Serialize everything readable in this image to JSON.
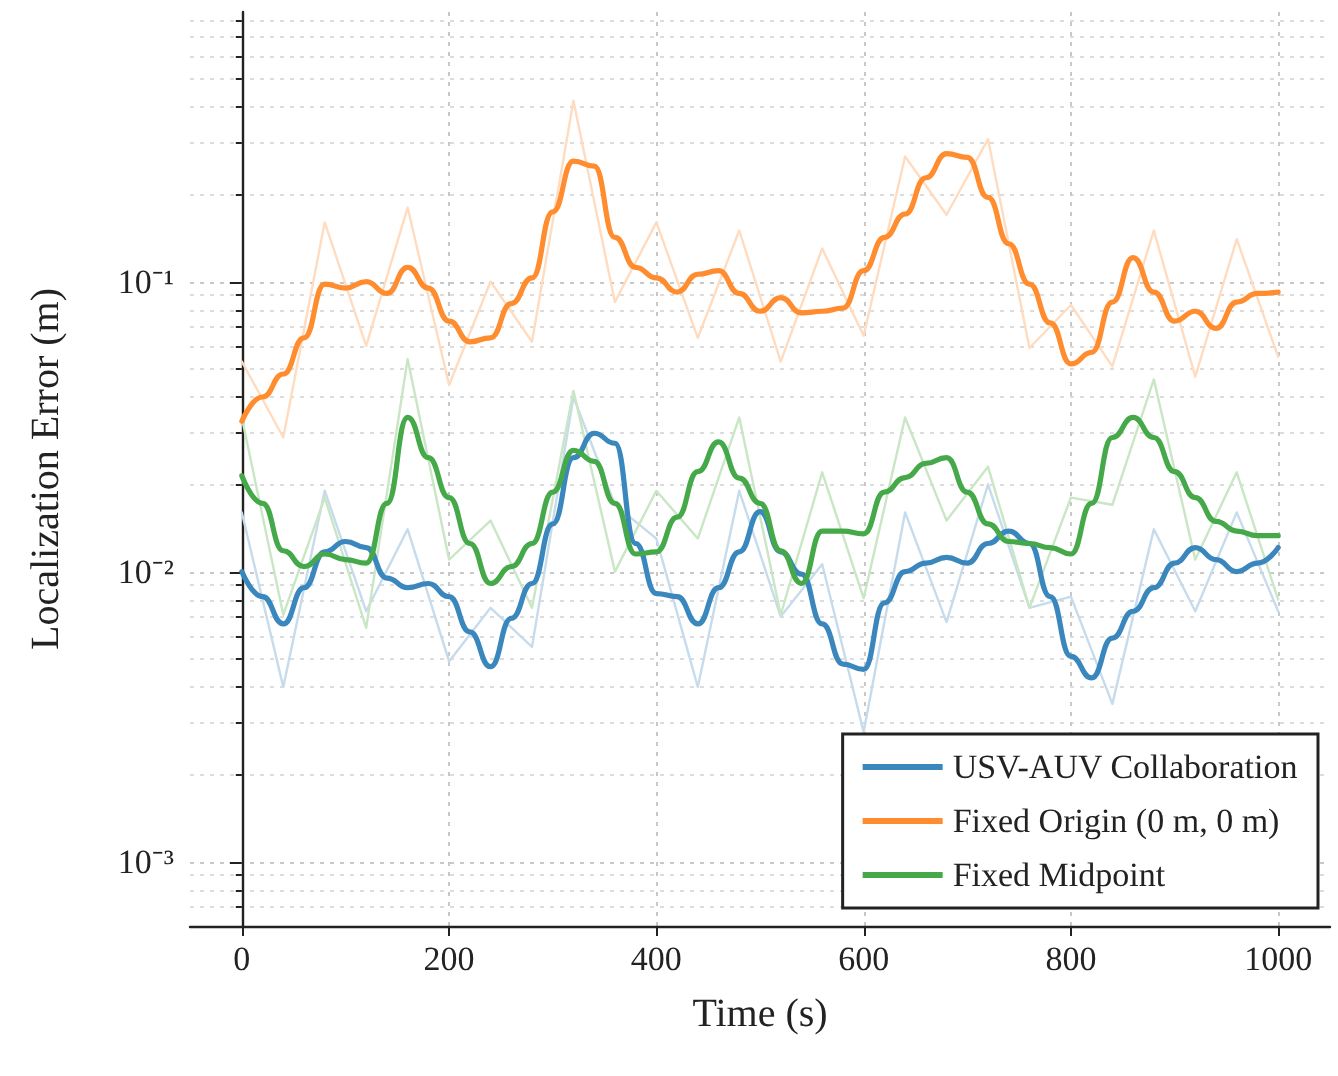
{
  "chart_data": {
    "type": "line",
    "xlabel": "Time (s)",
    "ylabel": "Localization Error (m)",
    "log": "y",
    "grid": true,
    "legend": "bottom right",
    "line_style": "solid",
    "marker": "none",
    "xlim": [
      -50,
      1050
    ],
    "xticks": [
      0,
      200,
      400,
      600,
      800,
      1000
    ],
    "ylim": [
      0.0006,
      0.85
    ],
    "yticks": [
      {
        "value": 0.001,
        "label": "10⁻³"
      },
      {
        "value": 0.01,
        "label": "10⁻²"
      },
      {
        "value": 0.1,
        "label": "10⁻¹"
      }
    ],
    "series": [
      {
        "color": "#c6dbec",
        "x": [
          0,
          40,
          80,
          120,
          160,
          200,
          240,
          280,
          320,
          360,
          400,
          440,
          480,
          520,
          560,
          600,
          640,
          680,
          720,
          760,
          800,
          840,
          880,
          920,
          960,
          1000
        ],
        "values": [
          0.016,
          0.004,
          0.019,
          0.0073,
          0.014,
          0.0049,
          0.0075,
          0.0055,
          0.04,
          0.017,
          0.013,
          0.004,
          0.019,
          0.007,
          0.0106,
          0.0028,
          0.016,
          0.0067,
          0.02,
          0.0075,
          0.0082,
          0.0035,
          0.014,
          0.0073,
          0.016,
          0.0073
        ]
      },
      {
        "color": "#ffdcc0",
        "x": [
          0,
          40,
          80,
          120,
          160,
          200,
          240,
          280,
          320,
          360,
          400,
          440,
          480,
          520,
          560,
          600,
          640,
          680,
          720,
          760,
          800,
          840,
          880,
          920,
          960,
          1000
        ],
        "values": [
          0.053,
          0.029,
          0.16,
          0.06,
          0.18,
          0.044,
          0.1,
          0.062,
          0.42,
          0.085,
          0.16,
          0.064,
          0.15,
          0.053,
          0.13,
          0.065,
          0.27,
          0.17,
          0.31,
          0.059,
          0.083,
          0.051,
          0.15,
          0.047,
          0.14,
          0.055
        ]
      },
      {
        "color": "#c9e6c5",
        "x": [
          0,
          40,
          80,
          120,
          160,
          200,
          240,
          280,
          320,
          360,
          400,
          440,
          480,
          520,
          560,
          600,
          640,
          680,
          720,
          760,
          800,
          840,
          880,
          920,
          960,
          1000
        ],
        "values": [
          0.034,
          0.0071,
          0.018,
          0.0064,
          0.054,
          0.011,
          0.015,
          0.0075,
          0.042,
          0.01,
          0.019,
          0.013,
          0.034,
          0.0071,
          0.022,
          0.0081,
          0.034,
          0.015,
          0.023,
          0.0075,
          0.018,
          0.017,
          0.046,
          0.011,
          0.022,
          0.008
        ]
      },
      {
        "name": "USV-AUV Collaboration",
        "color": "#3a87bd",
        "x": [
          0,
          20,
          40,
          60,
          80,
          100,
          120,
          140,
          160,
          180,
          200,
          220,
          240,
          260,
          280,
          300,
          320,
          340,
          360,
          380,
          400,
          420,
          440,
          460,
          480,
          500,
          520,
          540,
          560,
          580,
          600,
          620,
          640,
          660,
          680,
          700,
          720,
          740,
          760,
          780,
          800,
          820,
          840,
          860,
          880,
          900,
          920,
          940,
          960,
          980,
          1000
        ],
        "values": [
          0.01,
          0.0082,
          0.0066,
          0.0088,
          0.0117,
          0.0127,
          0.0121,
          0.0095,
          0.0088,
          0.0091,
          0.0082,
          0.0062,
          0.0047,
          0.0069,
          0.0091,
          0.0146,
          0.0247,
          0.03,
          0.0277,
          0.0125,
          0.0084,
          0.0082,
          0.0066,
          0.0088,
          0.0117,
          0.0161,
          0.0117,
          0.0098,
          0.0066,
          0.0048,
          0.0046,
          0.0078,
          0.01,
          0.0107,
          0.0112,
          0.0107,
          0.0125,
          0.0138,
          0.0125,
          0.0082,
          0.0051,
          0.0043,
          0.0059,
          0.0073,
          0.0088,
          0.0107,
          0.0121,
          0.011,
          0.01,
          0.0107,
          0.0121
        ]
      },
      {
        "name": "Fixed Origin (0 m, 0 m)",
        "color": "#ff8c2e",
        "x": [
          0,
          20,
          40,
          60,
          80,
          100,
          120,
          140,
          160,
          180,
          200,
          220,
          240,
          260,
          280,
          300,
          320,
          340,
          360,
          380,
          400,
          420,
          440,
          460,
          480,
          500,
          520,
          540,
          560,
          580,
          600,
          620,
          640,
          660,
          680,
          700,
          720,
          740,
          760,
          780,
          800,
          820,
          840,
          860,
          880,
          900,
          920,
          940,
          960,
          980,
          1000
        ],
        "values": [
          0.033,
          0.04,
          0.048,
          0.064,
          0.098,
          0.095,
          0.1,
          0.091,
          0.112,
          0.095,
          0.073,
          0.062,
          0.064,
          0.084,
          0.103,
          0.174,
          0.26,
          0.25,
          0.142,
          0.112,
          0.103,
          0.092,
          0.106,
          0.109,
          0.091,
          0.079,
          0.088,
          0.078,
          0.079,
          0.081,
          0.109,
          0.142,
          0.171,
          0.228,
          0.276,
          0.268,
          0.195,
          0.135,
          0.098,
          0.072,
          0.052,
          0.057,
          0.085,
          0.121,
          0.092,
          0.073,
          0.079,
          0.069,
          0.085,
          0.091,
          0.092
        ]
      },
      {
        "name": "Fixed Midpoint",
        "color": "#45a949",
        "x": [
          0,
          20,
          40,
          60,
          80,
          100,
          120,
          140,
          160,
          180,
          200,
          220,
          240,
          260,
          280,
          300,
          320,
          340,
          360,
          380,
          400,
          420,
          440,
          460,
          480,
          500,
          520,
          540,
          560,
          580,
          600,
          620,
          640,
          660,
          680,
          700,
          720,
          740,
          760,
          780,
          800,
          820,
          840,
          860,
          880,
          900,
          920,
          940,
          960,
          980,
          1000
        ],
        "values": [
          0.0214,
          0.0172,
          0.0118,
          0.0104,
          0.0115,
          0.011,
          0.0107,
          0.0172,
          0.034,
          0.0247,
          0.018,
          0.0125,
          0.0091,
          0.0104,
          0.0125,
          0.0188,
          0.0262,
          0.024,
          0.0172,
          0.0115,
          0.0117,
          0.0154,
          0.0221,
          0.028,
          0.021,
          0.0172,
          0.0118,
          0.0091,
          0.0138,
          0.0138,
          0.0135,
          0.0188,
          0.0211,
          0.0236,
          0.0247,
          0.0188,
          0.0146,
          0.0127,
          0.0125,
          0.0121,
          0.0115,
          0.0172,
          0.029,
          0.034,
          0.029,
          0.0221,
          0.018,
          0.0149,
          0.0138,
          0.0133,
          0.0133
        ]
      }
    ]
  }
}
